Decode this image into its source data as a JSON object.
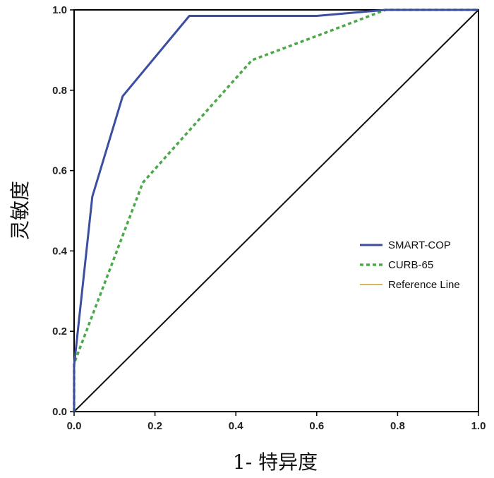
{
  "chart_data": {
    "type": "line",
    "title": "",
    "xlabel": "1- 特异度",
    "ylabel": "灵敏度",
    "xlim": [
      0,
      1
    ],
    "ylim": [
      0,
      1
    ],
    "xticks": [
      0.0,
      0.2,
      0.4,
      0.6,
      0.8,
      1.0
    ],
    "yticks": [
      0.0,
      0.2,
      0.4,
      0.6,
      0.8,
      1.0
    ],
    "xtick_labels": [
      "0.0",
      "0.2",
      "0.4",
      "0.6",
      "0.8",
      "1.0"
    ],
    "ytick_labels": [
      "0.0",
      "0.2",
      "0.4",
      "0.6",
      "0.8",
      "1.0"
    ],
    "grid": false,
    "legend_position": "right",
    "series": [
      {
        "name": "SMART-COP",
        "color": "#3b4ea0",
        "style": "solid",
        "x": [
          0.0,
          0.0,
          0.045,
          0.12,
          0.285,
          0.6,
          0.77,
          1.0
        ],
        "y": [
          0.0,
          0.115,
          0.535,
          0.785,
          0.985,
          0.985,
          1.0,
          1.0
        ]
      },
      {
        "name": "CURB-65",
        "color": "#4ca84a",
        "style": "dashed",
        "x": [
          0.0,
          0.0,
          0.17,
          0.44,
          0.6,
          0.77,
          1.0
        ],
        "y": [
          0.0,
          0.12,
          0.57,
          0.875,
          0.935,
          1.0,
          1.0
        ]
      },
      {
        "name": "Reference Line",
        "color": "#d9b55c",
        "style": "solid",
        "x": [
          0.0,
          1.0
        ],
        "y": [
          0.0,
          1.0
        ]
      }
    ]
  }
}
